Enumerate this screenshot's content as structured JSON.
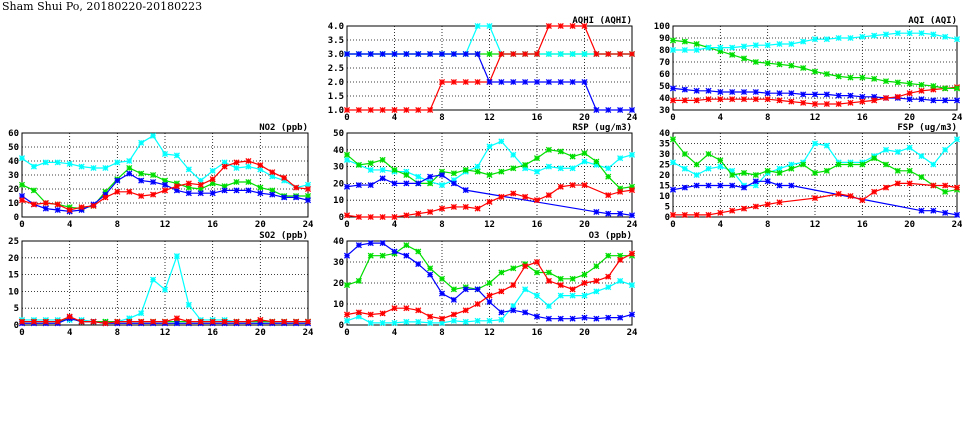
{
  "title": "Sham Shui Po, 20180220-20180223",
  "colors": {
    "blue": "#0000ff",
    "red": "#ff0000",
    "green": "#00dd00",
    "cyan": "#00ffff"
  },
  "chart_data": [
    {
      "type": "line",
      "title": "AQHI (AQHI)",
      "xlim": [
        0,
        24
      ],
      "xticks": [
        0,
        4,
        8,
        12,
        16,
        20,
        24
      ],
      "ylim": [
        1,
        4
      ],
      "yticks": [
        1.0,
        1.5,
        2.0,
        2.5,
        3.0,
        3.5,
        4.0
      ],
      "ytick_decimals": 1,
      "series": [
        {
          "color": "green",
          "values": [
            3,
            3,
            3,
            3,
            3,
            3,
            3,
            3,
            3,
            3,
            3,
            3,
            3,
            3,
            3,
            3,
            3,
            3,
            3,
            3,
            3,
            3,
            3,
            3,
            3
          ]
        },
        {
          "color": "cyan",
          "values": [
            3,
            3,
            3,
            3,
            3,
            3,
            3,
            3,
            3,
            3,
            3,
            4,
            4,
            3,
            3,
            3,
            3,
            3,
            3,
            3,
            3,
            3,
            3,
            3,
            3
          ]
        },
        {
          "color": "red",
          "values": [
            1,
            1,
            1,
            1,
            1,
            1,
            1,
            1,
            2,
            2,
            2,
            2,
            2,
            3,
            3,
            3,
            3,
            4,
            4,
            4,
            4,
            3,
            3,
            3,
            3
          ]
        },
        {
          "color": "blue",
          "values": [
            3,
            3,
            3,
            3,
            3,
            3,
            3,
            3,
            3,
            3,
            3,
            3,
            2,
            2,
            2,
            2,
            2,
            2,
            2,
            2,
            2,
            1,
            1,
            1,
            1
          ]
        }
      ]
    },
    {
      "type": "line",
      "title": "AQI (AQI)",
      "xlim": [
        0,
        24
      ],
      "xticks": [
        0,
        4,
        8,
        12,
        16,
        20,
        24
      ],
      "ylim": [
        30,
        100
      ],
      "yticks": [
        30,
        40,
        50,
        60,
        70,
        80,
        90,
        100
      ],
      "ytick_decimals": 0,
      "series": [
        {
          "color": "blue",
          "values": [
            48,
            47,
            46,
            46,
            45,
            45,
            45,
            45,
            44,
            44,
            44,
            43,
            43,
            43,
            42,
            42,
            41,
            41,
            40,
            40,
            39,
            39,
            38,
            38,
            38
          ]
        },
        {
          "color": "red",
          "values": [
            38,
            38,
            38,
            39,
            39,
            39,
            39,
            39,
            39,
            38,
            37,
            36,
            35,
            35,
            35,
            36,
            37,
            38,
            40,
            41,
            44,
            46,
            47,
            48,
            49
          ]
        },
        {
          "color": "green",
          "values": [
            88,
            87,
            85,
            82,
            79,
            76,
            73,
            70,
            69,
            68,
            67,
            65,
            62,
            60,
            58,
            57,
            57,
            56,
            54,
            53,
            52,
            51,
            50,
            48,
            48
          ]
        },
        {
          "color": "cyan",
          "values": [
            80,
            80,
            80,
            82,
            82,
            82,
            83,
            84,
            84,
            85,
            85,
            87,
            89,
            89,
            90,
            90,
            91,
            92,
            93,
            94,
            94,
            94,
            93,
            91,
            89
          ]
        }
      ]
    },
    {
      "type": "line",
      "title": "NO2 (ppb)",
      "xlim": [
        0,
        24
      ],
      "xticks": [
        0,
        4,
        8,
        12,
        16,
        20,
        24
      ],
      "ylim": [
        0,
        60
      ],
      "yticks": [
        0,
        10,
        20,
        30,
        40,
        50,
        60
      ],
      "ytick_decimals": 0,
      "series": [
        {
          "color": "cyan",
          "values": [
            42,
            36,
            39,
            39,
            38,
            36,
            35,
            35,
            39,
            40,
            53,
            58,
            45,
            44,
            34,
            26,
            33,
            39,
            35,
            36,
            34,
            29,
            26,
            21,
            23
          ]
        },
        {
          "color": "green",
          "values": [
            23,
            19,
            10,
            9,
            7,
            6,
            8,
            18,
            27,
            35,
            31,
            30,
            26,
            24,
            21,
            20,
            24,
            22,
            25,
            25,
            21,
            19,
            15,
            15,
            15
          ]
        },
        {
          "color": "blue",
          "values": [
            15,
            9,
            6,
            5,
            4,
            5,
            9,
            16,
            26,
            31,
            26,
            25,
            23,
            19,
            17,
            17,
            17,
            19,
            19,
            19,
            17,
            16,
            14,
            14,
            12
          ]
        },
        {
          "color": "red",
          "values": [
            12,
            9,
            10,
            9,
            5,
            7,
            8,
            14,
            18,
            18,
            15,
            16,
            19,
            22,
            24,
            23,
            27,
            36,
            39,
            40,
            37,
            32,
            28,
            21,
            20
          ]
        }
      ]
    },
    {
      "type": "line",
      "title": "RSP (ug/m3)",
      "xlim": [
        0,
        24
      ],
      "xticks": [
        0,
        4,
        8,
        12,
        16,
        20,
        24
      ],
      "ylim": [
        0,
        50
      ],
      "yticks": [
        0,
        10,
        20,
        30,
        40,
        50
      ],
      "ytick_decimals": 0,
      "series": [
        {
          "color": "cyan",
          "values": [
            34,
            31,
            28,
            28,
            27,
            27,
            24,
            21,
            19,
            22,
            27,
            30,
            42,
            45,
            37,
            29,
            27,
            30,
            29,
            29,
            33,
            31,
            29,
            35,
            37
          ]
        },
        {
          "color": "green",
          "values": [
            37,
            31,
            32,
            34,
            28,
            25,
            20,
            20,
            27,
            26,
            28,
            27,
            25,
            27,
            29,
            31,
            35,
            40,
            39,
            36,
            38,
            33,
            24,
            17,
            18
          ]
        },
        {
          "color": "blue",
          "values": [
            18,
            19,
            19,
            23,
            20,
            20,
            20,
            24,
            25,
            20,
            16,
            null,
            null,
            null,
            null,
            null,
            null,
            null,
            null,
            null,
            null,
            3,
            2,
            2,
            1
          ]
        },
        {
          "color": "red",
          "values": [
            1,
            0,
            0,
            0,
            0,
            1,
            2,
            3,
            5,
            6,
            6,
            5,
            9,
            12,
            14,
            12,
            10,
            13,
            18,
            19,
            19,
            null,
            13,
            15,
            16
          ]
        }
      ]
    },
    {
      "type": "line",
      "title": "FSP (ug/m3)",
      "xlim": [
        0,
        24
      ],
      "xticks": [
        0,
        4,
        8,
        12,
        16,
        20,
        24
      ],
      "ylim": [
        0,
        40
      ],
      "yticks": [
        0,
        5,
        10,
        15,
        20,
        25,
        30,
        35,
        40
      ],
      "ytick_decimals": 0,
      "series": [
        {
          "color": "cyan",
          "values": [
            26,
            23,
            20,
            23,
            24,
            22,
            15,
            15,
            21,
            23,
            25,
            26,
            35,
            34,
            26,
            26,
            26,
            29,
            32,
            31,
            33,
            29,
            25,
            32,
            37
          ]
        },
        {
          "color": "green",
          "values": [
            37,
            30,
            25,
            30,
            27,
            20,
            21,
            20,
            22,
            21,
            23,
            25,
            21,
            22,
            25,
            25,
            25,
            28,
            25,
            22,
            22,
            19,
            15,
            12,
            13
          ]
        },
        {
          "color": "blue",
          "values": [
            13,
            14,
            15,
            15,
            15,
            15,
            14,
            17,
            17,
            15,
            15,
            null,
            null,
            null,
            null,
            null,
            null,
            null,
            null,
            null,
            null,
            3,
            3,
            2,
            1
          ]
        },
        {
          "color": "red",
          "values": [
            1,
            1,
            1,
            1,
            2,
            3,
            4,
            5,
            6,
            7,
            null,
            null,
            9,
            null,
            11,
            10,
            8,
            12,
            14,
            16,
            16,
            null,
            15,
            15,
            14
          ]
        }
      ]
    },
    {
      "type": "line",
      "title": "SO2 (ppb)",
      "xlim": [
        0,
        24
      ],
      "xticks": [
        0,
        4,
        8,
        12,
        16,
        20,
        24
      ],
      "ylim": [
        0,
        25
      ],
      "yticks": [
        0,
        5,
        10,
        15,
        20,
        25
      ],
      "ytick_decimals": 0,
      "series": [
        {
          "color": "cyan",
          "values": [
            1.5,
            1.5,
            1.5,
            1.5,
            1.5,
            1.5,
            1,
            1,
            1,
            2,
            3.5,
            13.5,
            10.5,
            20.5,
            6,
            1.5,
            1.5,
            1.5,
            1,
            1,
            1,
            1,
            1,
            1,
            1
          ]
        },
        {
          "color": "green",
          "values": [
            1,
            1,
            1,
            1,
            2,
            1,
            1,
            1,
            1,
            1,
            1,
            1,
            1,
            1,
            1,
            1,
            1,
            1,
            1,
            1,
            1,
            1,
            1,
            1,
            1
          ]
        },
        {
          "color": "blue",
          "values": [
            0.5,
            0.5,
            0.5,
            0.5,
            2,
            1,
            1,
            0.5,
            0.5,
            0.5,
            0.5,
            0.5,
            0.5,
            0.5,
            0.5,
            0.5,
            0.5,
            0.5,
            0.5,
            0.5,
            0.5,
            0.5,
            0.5,
            0.5,
            0.5
          ]
        },
        {
          "color": "red",
          "values": [
            1,
            1,
            1,
            1,
            2.5,
            1,
            1,
            0.5,
            1,
            1,
            1,
            1,
            1,
            2,
            1,
            1,
            1,
            1,
            1,
            1,
            1.5,
            1,
            1,
            1,
            1
          ]
        }
      ]
    },
    {
      "type": "line",
      "title": "O3 (ppb)",
      "xlim": [
        0,
        24
      ],
      "xticks": [
        0,
        4,
        8,
        12,
        16,
        20,
        24
      ],
      "ylim": [
        0,
        40
      ],
      "yticks": [
        0,
        10,
        20,
        30,
        40
      ],
      "ytick_decimals": 0,
      "series": [
        {
          "color": "cyan",
          "values": [
            2,
            4,
            1,
            1,
            1,
            1.5,
            1.5,
            1,
            1,
            2,
            1.5,
            2,
            2,
            2.5,
            9,
            17,
            14,
            9,
            14,
            14,
            14,
            16,
            18,
            21,
            19
          ]
        },
        {
          "color": "green",
          "values": [
            19,
            21,
            33,
            33,
            34,
            38,
            35,
            27,
            22,
            17,
            18,
            17,
            20,
            25,
            27,
            29,
            25,
            25,
            22,
            22,
            24,
            28,
            33,
            33,
            33
          ]
        },
        {
          "color": "blue",
          "values": [
            33,
            38,
            39,
            39,
            35,
            33,
            29,
            24,
            15,
            12,
            17,
            17,
            11,
            6,
            7,
            6,
            4,
            3,
            3,
            3,
            3.5,
            3,
            3.5,
            3.5,
            5
          ]
        },
        {
          "color": "red",
          "values": [
            5,
            6,
            5,
            5.5,
            8,
            8,
            7,
            4,
            3,
            5,
            7,
            10,
            14,
            16,
            19,
            28,
            30,
            21,
            19,
            17,
            20,
            21,
            23,
            31,
            34
          ]
        }
      ]
    }
  ]
}
